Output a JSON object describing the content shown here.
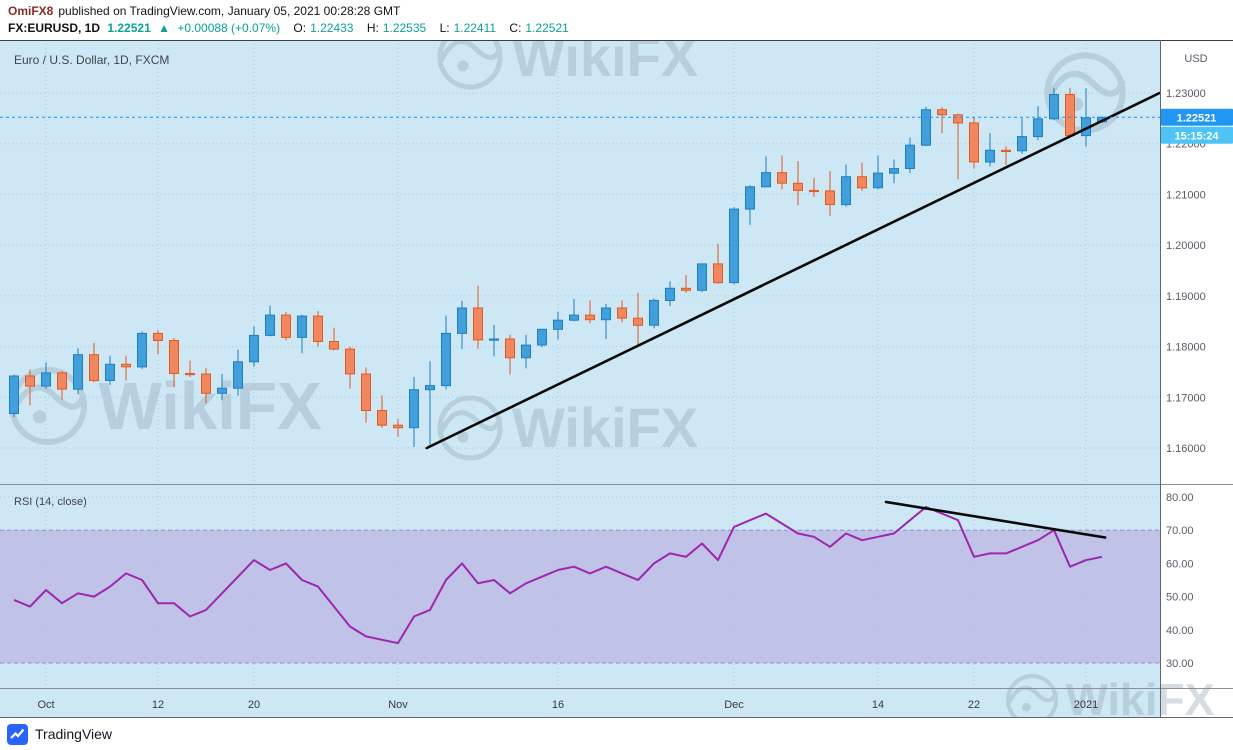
{
  "header": {
    "author": "OmiFX8",
    "publish_text": "published on TradingView.com, January 05, 2021 00:28:28 GMT",
    "symbol": "FX:EURUSD, 1D",
    "last_price": "1.22521",
    "change_arrow": "▲",
    "change": "+0.00088 (+0.07%)",
    "ohlc": [
      {
        "label": "O:",
        "value": "1.22433"
      },
      {
        "label": "H:",
        "value": "1.22535"
      },
      {
        "label": "L:",
        "value": "1.22411"
      },
      {
        "label": "C:",
        "value": "1.22521"
      }
    ]
  },
  "price_pane": {
    "axis_currency": "USD",
    "current_price_badge": "1.22521",
    "countdown_badge": "15:15:24"
  },
  "footer": {
    "brand": "TradingView"
  },
  "watermark": {
    "text": "WikiFX"
  },
  "colors": {
    "up": "#41a0dc",
    "up_border": "#1d7fc2",
    "down": "#f0875f",
    "down_border": "#e25a20",
    "rsi_line": "#9c27b0",
    "band_fill": "#b39ddb",
    "band_border": "#8e7cc3",
    "trendline": "#0a0a0a",
    "current_price_line": "#2196f3",
    "price_badge_bg": "#2196f3",
    "time_badge_bg": "#4ec3f6",
    "pane_bg": "#cde7f5",
    "grid": "#a9cadd",
    "axis_text": "#565c66",
    "tick_text": "#363b41",
    "teal": "#0aa396",
    "author": "#8b2b2b",
    "watermark": "#93a5b1"
  },
  "chart_data": {
    "type": "candlestick",
    "title": "Euro / U.S. Dollar, 1D, FXCM",
    "pair": "EUR/USD",
    "interval": "1D",
    "x_ticks": [
      {
        "label": "Oct",
        "index": 2
      },
      {
        "label": "12",
        "index": 9
      },
      {
        "label": "20",
        "index": 15
      },
      {
        "label": "Nov",
        "index": 24
      },
      {
        "label": "16",
        "index": 34
      },
      {
        "label": "Dec",
        "index": 45
      },
      {
        "label": "14",
        "index": 54
      },
      {
        "label": "22",
        "index": 60
      },
      {
        "label": "2021",
        "index": 67
      }
    ],
    "price_axis": {
      "visible_range": [
        1.155,
        1.236
      ],
      "gridlines": [
        {
          "value": 1.23,
          "label": "1.23000"
        },
        {
          "value": 1.22,
          "label": "1.22000"
        },
        {
          "value": 1.21,
          "label": "1.21000"
        },
        {
          "value": 1.2,
          "label": "1.20000"
        },
        {
          "value": 1.19,
          "label": "1.19000"
        },
        {
          "value": 1.18,
          "label": "1.18000"
        },
        {
          "value": 1.17,
          "label": "1.17000"
        },
        {
          "value": 1.16,
          "label": "1.16000"
        }
      ]
    },
    "ohlc": [
      [
        1.1668,
        1.1745,
        1.1661,
        1.1742
      ],
      [
        1.1742,
        1.1755,
        1.1684,
        1.1722
      ],
      [
        1.1722,
        1.1769,
        1.1717,
        1.1748
      ],
      [
        1.1748,
        1.1752,
        1.1695,
        1.1716
      ],
      [
        1.1716,
        1.1797,
        1.1706,
        1.1784
      ],
      [
        1.1784,
        1.1807,
        1.173,
        1.1733
      ],
      [
        1.1733,
        1.1782,
        1.1724,
        1.1765
      ],
      [
        1.1765,
        1.1782,
        1.1733,
        1.176
      ],
      [
        1.176,
        1.183,
        1.1756,
        1.1826
      ],
      [
        1.1826,
        1.1832,
        1.1785,
        1.1812
      ],
      [
        1.1812,
        1.1817,
        1.172,
        1.1747
      ],
      [
        1.1747,
        1.1772,
        1.174,
        1.1746
      ],
      [
        1.1746,
        1.1758,
        1.1688,
        1.1708
      ],
      [
        1.1708,
        1.1746,
        1.1694,
        1.1718
      ],
      [
        1.1718,
        1.1794,
        1.1703,
        1.177
      ],
      [
        1.177,
        1.184,
        1.176,
        1.1822
      ],
      [
        1.1822,
        1.1881,
        1.182,
        1.1862
      ],
      [
        1.1862,
        1.1868,
        1.1812,
        1.1818
      ],
      [
        1.1818,
        1.1863,
        1.1787,
        1.186
      ],
      [
        1.186,
        1.187,
        1.18,
        1.181
      ],
      [
        1.181,
        1.1837,
        1.1793,
        1.1795
      ],
      [
        1.1795,
        1.18,
        1.1717,
        1.1746
      ],
      [
        1.1746,
        1.1759,
        1.165,
        1.1674
      ],
      [
        1.1674,
        1.1704,
        1.164,
        1.1645
      ],
      [
        1.1645,
        1.1658,
        1.1622,
        1.164
      ],
      [
        1.164,
        1.174,
        1.1602,
        1.1715
      ],
      [
        1.1715,
        1.1771,
        1.1603,
        1.1723
      ],
      [
        1.1723,
        1.1861,
        1.1716,
        1.1826
      ],
      [
        1.1826,
        1.189,
        1.1795,
        1.1876
      ],
      [
        1.1876,
        1.192,
        1.1795,
        1.1813
      ],
      [
        1.1813,
        1.1843,
        1.1781,
        1.1815
      ],
      [
        1.1815,
        1.1823,
        1.1745,
        1.1778
      ],
      [
        1.1778,
        1.1823,
        1.1757,
        1.1803
      ],
      [
        1.1803,
        1.1834,
        1.1799,
        1.1834
      ],
      [
        1.1834,
        1.1869,
        1.1814,
        1.1852
      ],
      [
        1.1852,
        1.1894,
        1.185,
        1.1862
      ],
      [
        1.1862,
        1.1891,
        1.1846,
        1.1853
      ],
      [
        1.1853,
        1.1884,
        1.1815,
        1.1876
      ],
      [
        1.1876,
        1.1891,
        1.1848,
        1.1856
      ],
      [
        1.1856,
        1.1906,
        1.18,
        1.1842
      ],
      [
        1.1842,
        1.1895,
        1.1836,
        1.1891
      ],
      [
        1.1891,
        1.1929,
        1.188,
        1.1915
      ],
      [
        1.1915,
        1.1941,
        1.1906,
        1.1911
      ],
      [
        1.1911,
        1.1963,
        1.1907,
        1.1963
      ],
      [
        1.1963,
        1.2003,
        1.1924,
        1.1926
      ],
      [
        1.1926,
        1.2075,
        1.1923,
        1.2071
      ],
      [
        1.2071,
        1.2118,
        1.204,
        1.2115
      ],
      [
        1.2115,
        1.2175,
        1.2114,
        1.2143
      ],
      [
        1.2143,
        1.2177,
        1.211,
        1.2122
      ],
      [
        1.2122,
        1.2166,
        1.2079,
        1.2108
      ],
      [
        1.2108,
        1.2133,
        1.2095,
        1.2107
      ],
      [
        1.2107,
        1.2146,
        1.2058,
        1.208
      ],
      [
        1.208,
        1.2159,
        1.2076,
        1.2135
      ],
      [
        1.2135,
        1.2163,
        1.2107,
        1.2113
      ],
      [
        1.2113,
        1.2177,
        1.211,
        1.2142
      ],
      [
        1.2142,
        1.2169,
        1.2122,
        1.2151
      ],
      [
        1.2151,
        1.2212,
        1.2142,
        1.2197
      ],
      [
        1.2197,
        1.2273,
        1.2195,
        1.2267
      ],
      [
        1.2267,
        1.2272,
        1.2221,
        1.2257
      ],
      [
        1.2257,
        1.2259,
        1.213,
        1.2241
      ],
      [
        1.2241,
        1.2253,
        1.2151,
        1.2164
      ],
      [
        1.2164,
        1.2221,
        1.2155,
        1.2187
      ],
      [
        1.2187,
        1.2195,
        1.2158,
        1.2186
      ],
      [
        1.2186,
        1.225,
        1.218,
        1.2214
      ],
      [
        1.2214,
        1.2274,
        1.2207,
        1.2249
      ],
      [
        1.2249,
        1.231,
        1.2246,
        1.2297
      ],
      [
        1.2297,
        1.231,
        1.2214,
        1.2216
      ],
      [
        1.2216,
        1.2309,
        1.2194,
        1.2251
      ],
      [
        1.22433,
        1.22535,
        1.22411,
        1.22521
      ]
    ],
    "indicator": {
      "name": "RSI (14, close)",
      "values": [
        49,
        47,
        52,
        48,
        51,
        50,
        53,
        57,
        55,
        48,
        48,
        44,
        46,
        51,
        56,
        61,
        58,
        60,
        55,
        53,
        47,
        41,
        38,
        37,
        36,
        44,
        46,
        55,
        60,
        54,
        55,
        51,
        54,
        56,
        58,
        59,
        57,
        59,
        57,
        55,
        60,
        63,
        62,
        66,
        61,
        71,
        73,
        75,
        72,
        69,
        68,
        65,
        69,
        67,
        68,
        69,
        73,
        77,
        75,
        73,
        62,
        63,
        63,
        65,
        67,
        70,
        59,
        61,
        62
      ],
      "axis": {
        "gridlines": [
          {
            "value": 80,
            "label": "80.00"
          },
          {
            "value": 70,
            "label": "70.00"
          },
          {
            "value": 60,
            "label": "60.00"
          },
          {
            "value": 50,
            "label": "50.00"
          },
          {
            "value": 40,
            "label": "40.00"
          },
          {
            "value": 30,
            "label": "30.00"
          }
        ],
        "band": [
          30,
          70
        ]
      }
    },
    "trendlines": [
      {
        "pane": "price",
        "from": {
          "index": 25.8,
          "value": 1.16
        },
        "to": {
          "index": 71.6,
          "value": 1.23
        }
      },
      {
        "pane": "rsi",
        "from": {
          "index": 54.5,
          "value": 78.5
        },
        "to": {
          "index": 68.2,
          "value": 67.8
        }
      }
    ],
    "last": {
      "price": 1.22521,
      "countdown": "15:15:24"
    }
  }
}
